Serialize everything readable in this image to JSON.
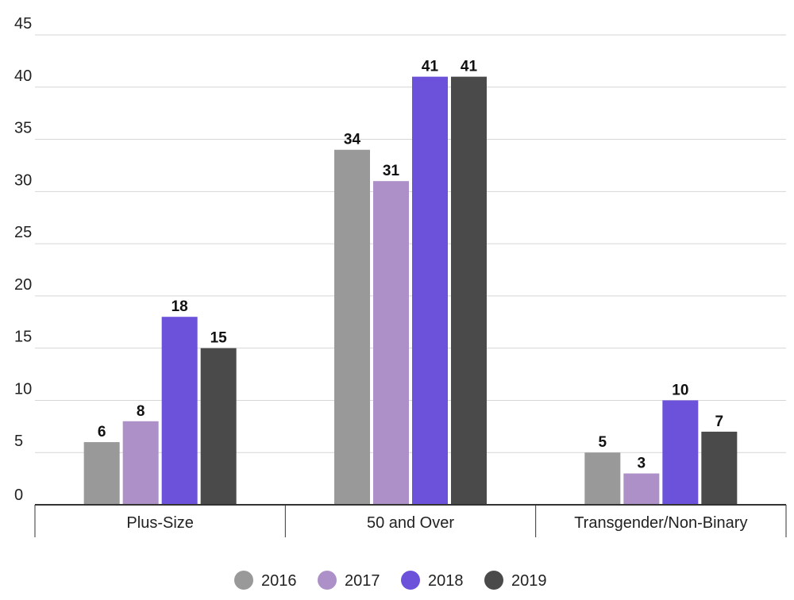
{
  "chart_data": {
    "type": "bar",
    "title": "",
    "xlabel": "",
    "ylabel": "",
    "ylim": [
      0,
      45
    ],
    "y_ticks": [
      0,
      5,
      10,
      15,
      20,
      25,
      30,
      35,
      40,
      45
    ],
    "grid": true,
    "legend_position": "bottom",
    "categories": [
      "Plus-Size",
      "50 and Over",
      "Transgender/Non-Binary"
    ],
    "series": [
      {
        "name": "2016",
        "color": "#999999",
        "values": [
          6,
          34,
          5
        ]
      },
      {
        "name": "2017",
        "color": "#ad90c7",
        "values": [
          8,
          31,
          3
        ]
      },
      {
        "name": "2018",
        "color": "#6c52da",
        "values": [
          18,
          41,
          10
        ]
      },
      {
        "name": "2019",
        "color": "#4a4a4a",
        "values": [
          15,
          41,
          7
        ]
      }
    ]
  }
}
